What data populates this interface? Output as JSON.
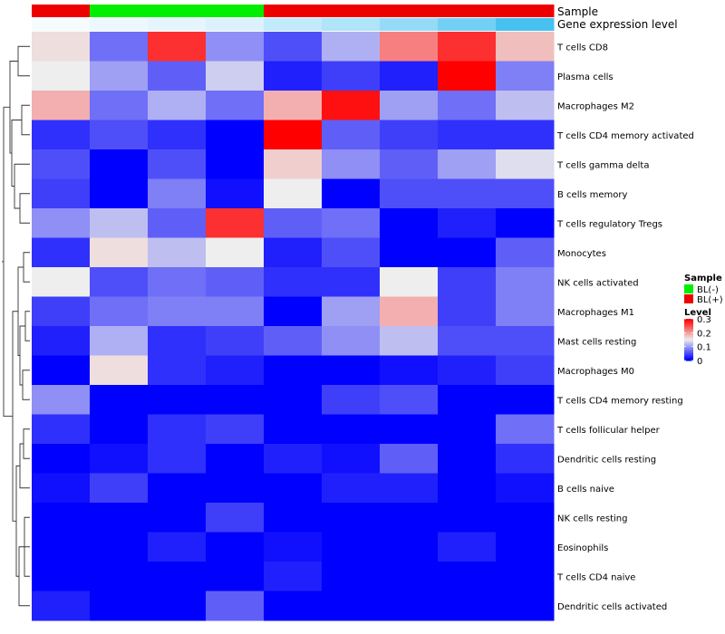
{
  "chart_data": {
    "type": "heatmap",
    "rows": [
      "T cells CD8",
      "Plasma cells",
      "Macrophages M2",
      "T cells CD4 memory activated",
      "T cells gamma delta",
      "B cells memory",
      "T cells regulatory  Tregs",
      "Monocytes",
      "NK cells activated",
      "Macrophages M1",
      "Mast cells resting",
      "Macrophages M0",
      "T cells CD4 memory resting",
      "T cells follicular helper",
      "Dendritic cells resting",
      "B cells naive",
      "NK cells resting",
      "Eosinophils",
      "T cells CD4 naive",
      "Dendritic cells activated"
    ],
    "values": [
      [
        0.16,
        0.07,
        0.27,
        0.09,
        0.05,
        0.11,
        0.22,
        0.27,
        0.18
      ],
      [
        0.15,
        0.1,
        0.06,
        0.13,
        0.02,
        0.04,
        0.02,
        0.3,
        0.08
      ],
      [
        0.19,
        0.07,
        0.11,
        0.07,
        0.19,
        0.29,
        0.1,
        0.07,
        0.12
      ],
      [
        0.03,
        0.05,
        0.03,
        0.0,
        0.3,
        0.06,
        0.04,
        0.03,
        0.03
      ],
      [
        0.05,
        0.0,
        0.05,
        0.0,
        0.17,
        0.09,
        0.06,
        0.1,
        0.14
      ],
      [
        0.04,
        0.0,
        0.08,
        0.01,
        0.15,
        0.0,
        0.05,
        0.05,
        0.05
      ],
      [
        0.09,
        0.12,
        0.06,
        0.27,
        0.06,
        0.07,
        0.0,
        0.02,
        0.0
      ],
      [
        0.03,
        0.16,
        0.12,
        0.15,
        0.02,
        0.05,
        0.0,
        0.0,
        0.06
      ],
      [
        0.15,
        0.05,
        0.07,
        0.06,
        0.03,
        0.03,
        0.15,
        0.04,
        0.08
      ],
      [
        0.04,
        0.07,
        0.08,
        0.08,
        0.0,
        0.1,
        0.19,
        0.04,
        0.08
      ],
      [
        0.02,
        0.11,
        0.03,
        0.04,
        0.06,
        0.09,
        0.12,
        0.05,
        0.05
      ],
      [
        0.0,
        0.16,
        0.03,
        0.02,
        0.0,
        0.0,
        0.01,
        0.02,
        0.04
      ],
      [
        0.09,
        0.0,
        0.0,
        0.0,
        0.0,
        0.04,
        0.05,
        0.0,
        0.0
      ],
      [
        0.03,
        0.0,
        0.03,
        0.04,
        0.0,
        0.0,
        0.0,
        0.0,
        0.07
      ],
      [
        0.0,
        0.01,
        0.03,
        0.0,
        0.02,
        0.01,
        0.06,
        0.0,
        0.03
      ],
      [
        0.01,
        0.04,
        0.0,
        0.0,
        0.0,
        0.02,
        0.02,
        0.0,
        0.01
      ],
      [
        0.0,
        0.0,
        0.0,
        0.04,
        0.0,
        0.0,
        0.0,
        0.0,
        0.0
      ],
      [
        0.0,
        0.0,
        0.02,
        0.0,
        0.01,
        0.0,
        0.0,
        0.02,
        0.0
      ],
      [
        0.0,
        0.0,
        0.0,
        0.0,
        0.02,
        0.0,
        0.0,
        0.0,
        0.0
      ],
      [
        0.02,
        0.0,
        0.0,
        0.06,
        0.0,
        0.0,
        0.0,
        0.0,
        0.0
      ]
    ],
    "annotations": [
      {
        "label": "Sample",
        "values": [
          "BL(+)",
          "BL(-)",
          "BL(-)",
          "BL(-)",
          "BL(+)",
          "BL(+)",
          "BL(+)",
          "BL(+)",
          "BL(+)"
        ]
      },
      {
        "label": "Gene expression level",
        "levels": [
          0.0,
          0.05,
          0.1,
          0.15,
          0.3,
          0.4,
          0.55,
          0.75,
          1.0
        ]
      }
    ],
    "legend": {
      "sample_title": "Sample",
      "sample_items": [
        {
          "label": "BL(-)",
          "color": "#00ee00"
        },
        {
          "label": "BL(+)",
          "color": "#ee0000"
        }
      ],
      "level_title": "Level",
      "level_ticks": [
        0.3,
        0.2,
        0.1,
        0
      ]
    },
    "color_scale": {
      "low": "#0000ff",
      "mid": "#eeeeee",
      "high": "#ff0000",
      "domain": [
        0,
        0.15,
        0.3
      ]
    },
    "expression_colors": {
      "low": "#f5fbff",
      "high": "#47c1f0"
    },
    "row_dendrogram": true,
    "grid": false,
    "legend_position": "right"
  }
}
